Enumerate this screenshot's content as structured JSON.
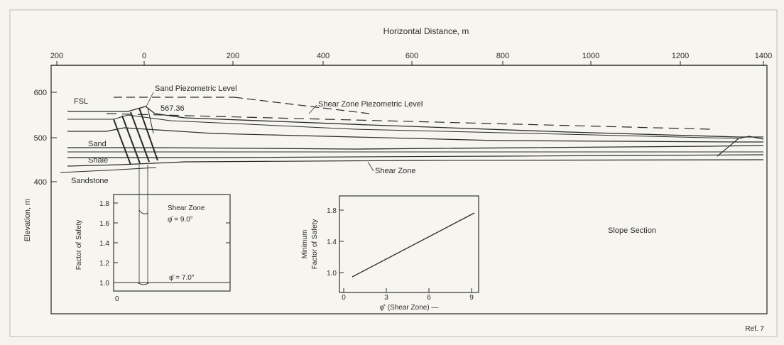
{
  "figure": {
    "x_axis_title": "Horizontal Distance, m",
    "x_ticks": [
      "200",
      "0",
      "200",
      "400",
      "600",
      "800",
      "1000",
      "1200",
      "1400"
    ],
    "y_axis_title": "Elevation, m",
    "y_ticks": [
      "600",
      "500",
      "400"
    ],
    "labels": {
      "fsl": "FSL",
      "sand_piezometric_level": "Sand Piezometric Level",
      "elevation_value": "567.36",
      "shear_zone_piezometric_level": "Shear Zone Piezometric Level",
      "sand": "Sand",
      "shale": "Shale",
      "sandstone": "Sandstone",
      "shear_zone": "Shear Zone",
      "slope_section": "Slope Section",
      "reference": "Ref. 7"
    },
    "inset_left": {
      "y_label": "Factor of Safety",
      "y_ticks": [
        "1.8",
        "1.6",
        "1.4",
        "1.2",
        "1.0"
      ],
      "shear_zone_label": "Shear Zone",
      "phi_upper": "φ̄ = 9.0°",
      "phi_lower": "φ̄ = 7.0°",
      "origin_label": "0"
    },
    "inset_right": {
      "y_label_line1": "Minimum",
      "y_label_line2": "Factor of Safety",
      "x_label": "φ̄' (Shear Zone) —",
      "y_ticks": [
        "1.8",
        "1.4",
        "1.0"
      ],
      "x_ticks": [
        "0",
        "3",
        "6",
        "9"
      ]
    }
  }
}
